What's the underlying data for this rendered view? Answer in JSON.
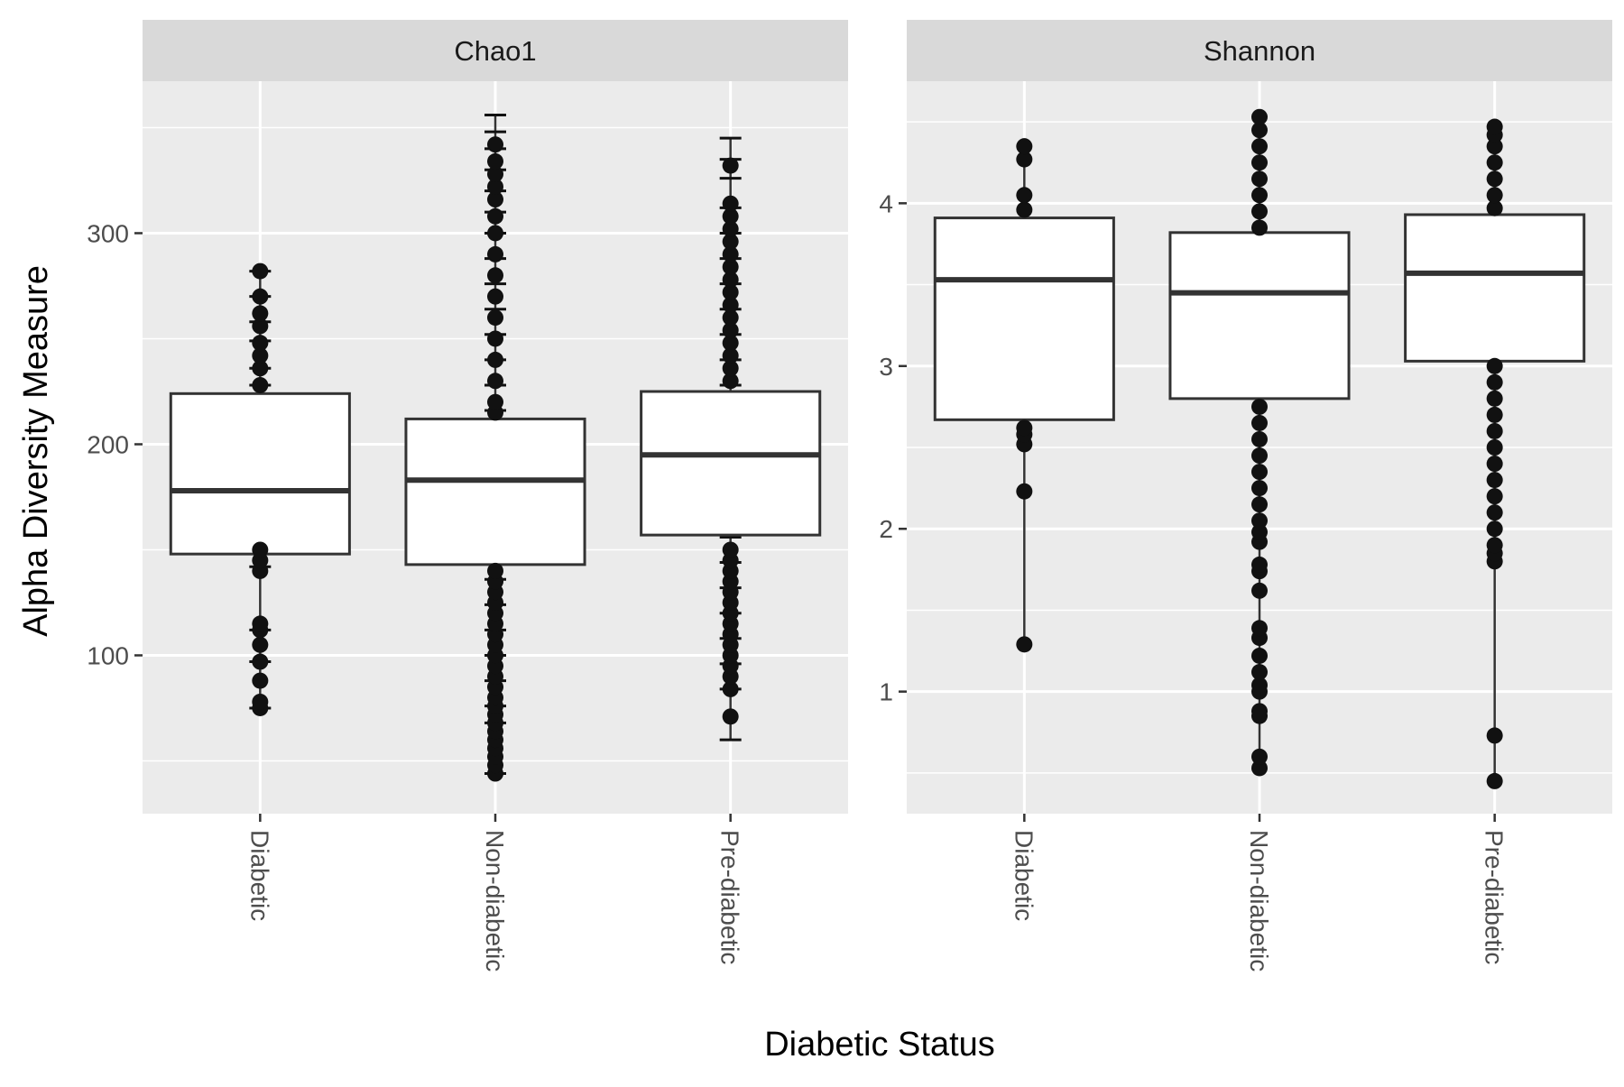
{
  "chart_data": {
    "type": "box",
    "xlabel": "Diabetic Status",
    "ylabel": "Alpha Diversity Measure",
    "grid": true,
    "categories": [
      "Diabetic",
      "Non-diabetic",
      "Pre-diabetic"
    ],
    "panels": [
      {
        "strip_label": "Chao1",
        "ylim": [
          25,
          372
        ],
        "yticks": [
          100,
          200,
          300
        ],
        "boxes": [
          {
            "category": "Diabetic",
            "q1": 148,
            "median": 178,
            "q3": 224,
            "whisker_low": 75,
            "whisker_high": 282,
            "points": [
              75,
              78,
              88,
              97,
              105,
              112,
              115,
              140,
              145,
              150,
              228,
              236,
              242,
              248,
              256,
              262,
              270,
              282
            ],
            "error_caps": [
              75,
              97,
              112,
              142,
              228,
              236,
              249,
              258,
              270,
              282
            ]
          },
          {
            "category": "Non-diabetic",
            "q1": 143,
            "median": 183,
            "q3": 212,
            "whisker_low": 44,
            "whisker_high": 356,
            "points": [
              44,
              48,
              52,
              56,
              60,
              64,
              68,
              72,
              76,
              80,
              85,
              90,
              95,
              100,
              105,
              110,
              115,
              120,
              125,
              130,
              135,
              140,
              215,
              220,
              230,
              240,
              250,
              260,
              270,
              280,
              290,
              300,
              308,
              316,
              322,
              328,
              334,
              342
            ],
            "error_caps": [
              44,
              68,
              76,
              88,
              100,
              112,
              124,
              136,
              216,
              228,
              240,
              252,
              264,
              276,
              288,
              300,
              310,
              320,
              330,
              340,
              348,
              356
            ]
          },
          {
            "category": "Pre-diabetic",
            "q1": 157,
            "median": 195,
            "q3": 225,
            "whisker_low": 60,
            "whisker_high": 345,
            "points": [
              71,
              84,
              90,
              95,
              100,
              105,
              110,
              115,
              120,
              125,
              130,
              135,
              140,
              145,
              150,
              230,
              236,
              242,
              248,
              254,
              260,
              266,
              272,
              278,
              284,
              290,
              296,
              302,
              308,
              314,
              332
            ],
            "error_caps": [
              60,
              84,
              96,
              108,
              120,
              132,
              144,
              156,
              228,
              240,
              252,
              264,
              276,
              288,
              300,
              312,
              326,
              335,
              345
            ]
          }
        ]
      },
      {
        "strip_label": "Shannon",
        "ylim": [
          0.25,
          4.75
        ],
        "yticks": [
          1,
          2,
          3,
          4
        ],
        "boxes": [
          {
            "category": "Diabetic",
            "q1": 2.67,
            "median": 3.53,
            "q3": 3.91,
            "whisker_low": 1.29,
            "whisker_high": 4.35,
            "points": [
              1.29,
              2.23,
              2.52,
              2.58,
              2.62,
              3.96,
              4.05,
              4.27,
              4.35
            ],
            "error_caps": []
          },
          {
            "category": "Non-diabetic",
            "q1": 2.8,
            "median": 3.45,
            "q3": 3.82,
            "whisker_low": 0.53,
            "whisker_high": 4.53,
            "points": [
              0.53,
              0.6,
              0.85,
              0.88,
              1.0,
              1.04,
              1.12,
              1.22,
              1.33,
              1.39,
              1.62,
              1.74,
              1.78,
              1.92,
              1.98,
              2.05,
              2.15,
              2.25,
              2.35,
              2.45,
              2.55,
              2.65,
              2.75,
              3.85,
              3.95,
              4.05,
              4.15,
              4.25,
              4.35,
              4.45,
              4.53
            ],
            "error_caps": []
          },
          {
            "category": "Pre-diabetic",
            "q1": 3.03,
            "median": 3.57,
            "q3": 3.93,
            "whisker_low": 0.45,
            "whisker_high": 4.47,
            "points": [
              0.45,
              0.73,
              1.8,
              1.85,
              1.9,
              2.0,
              2.1,
              2.2,
              2.3,
              2.4,
              2.5,
              2.6,
              2.7,
              2.8,
              2.9,
              3.0,
              3.97,
              4.05,
              4.15,
              4.25,
              4.35,
              4.42,
              4.47
            ],
            "error_caps": []
          }
        ]
      }
    ]
  }
}
